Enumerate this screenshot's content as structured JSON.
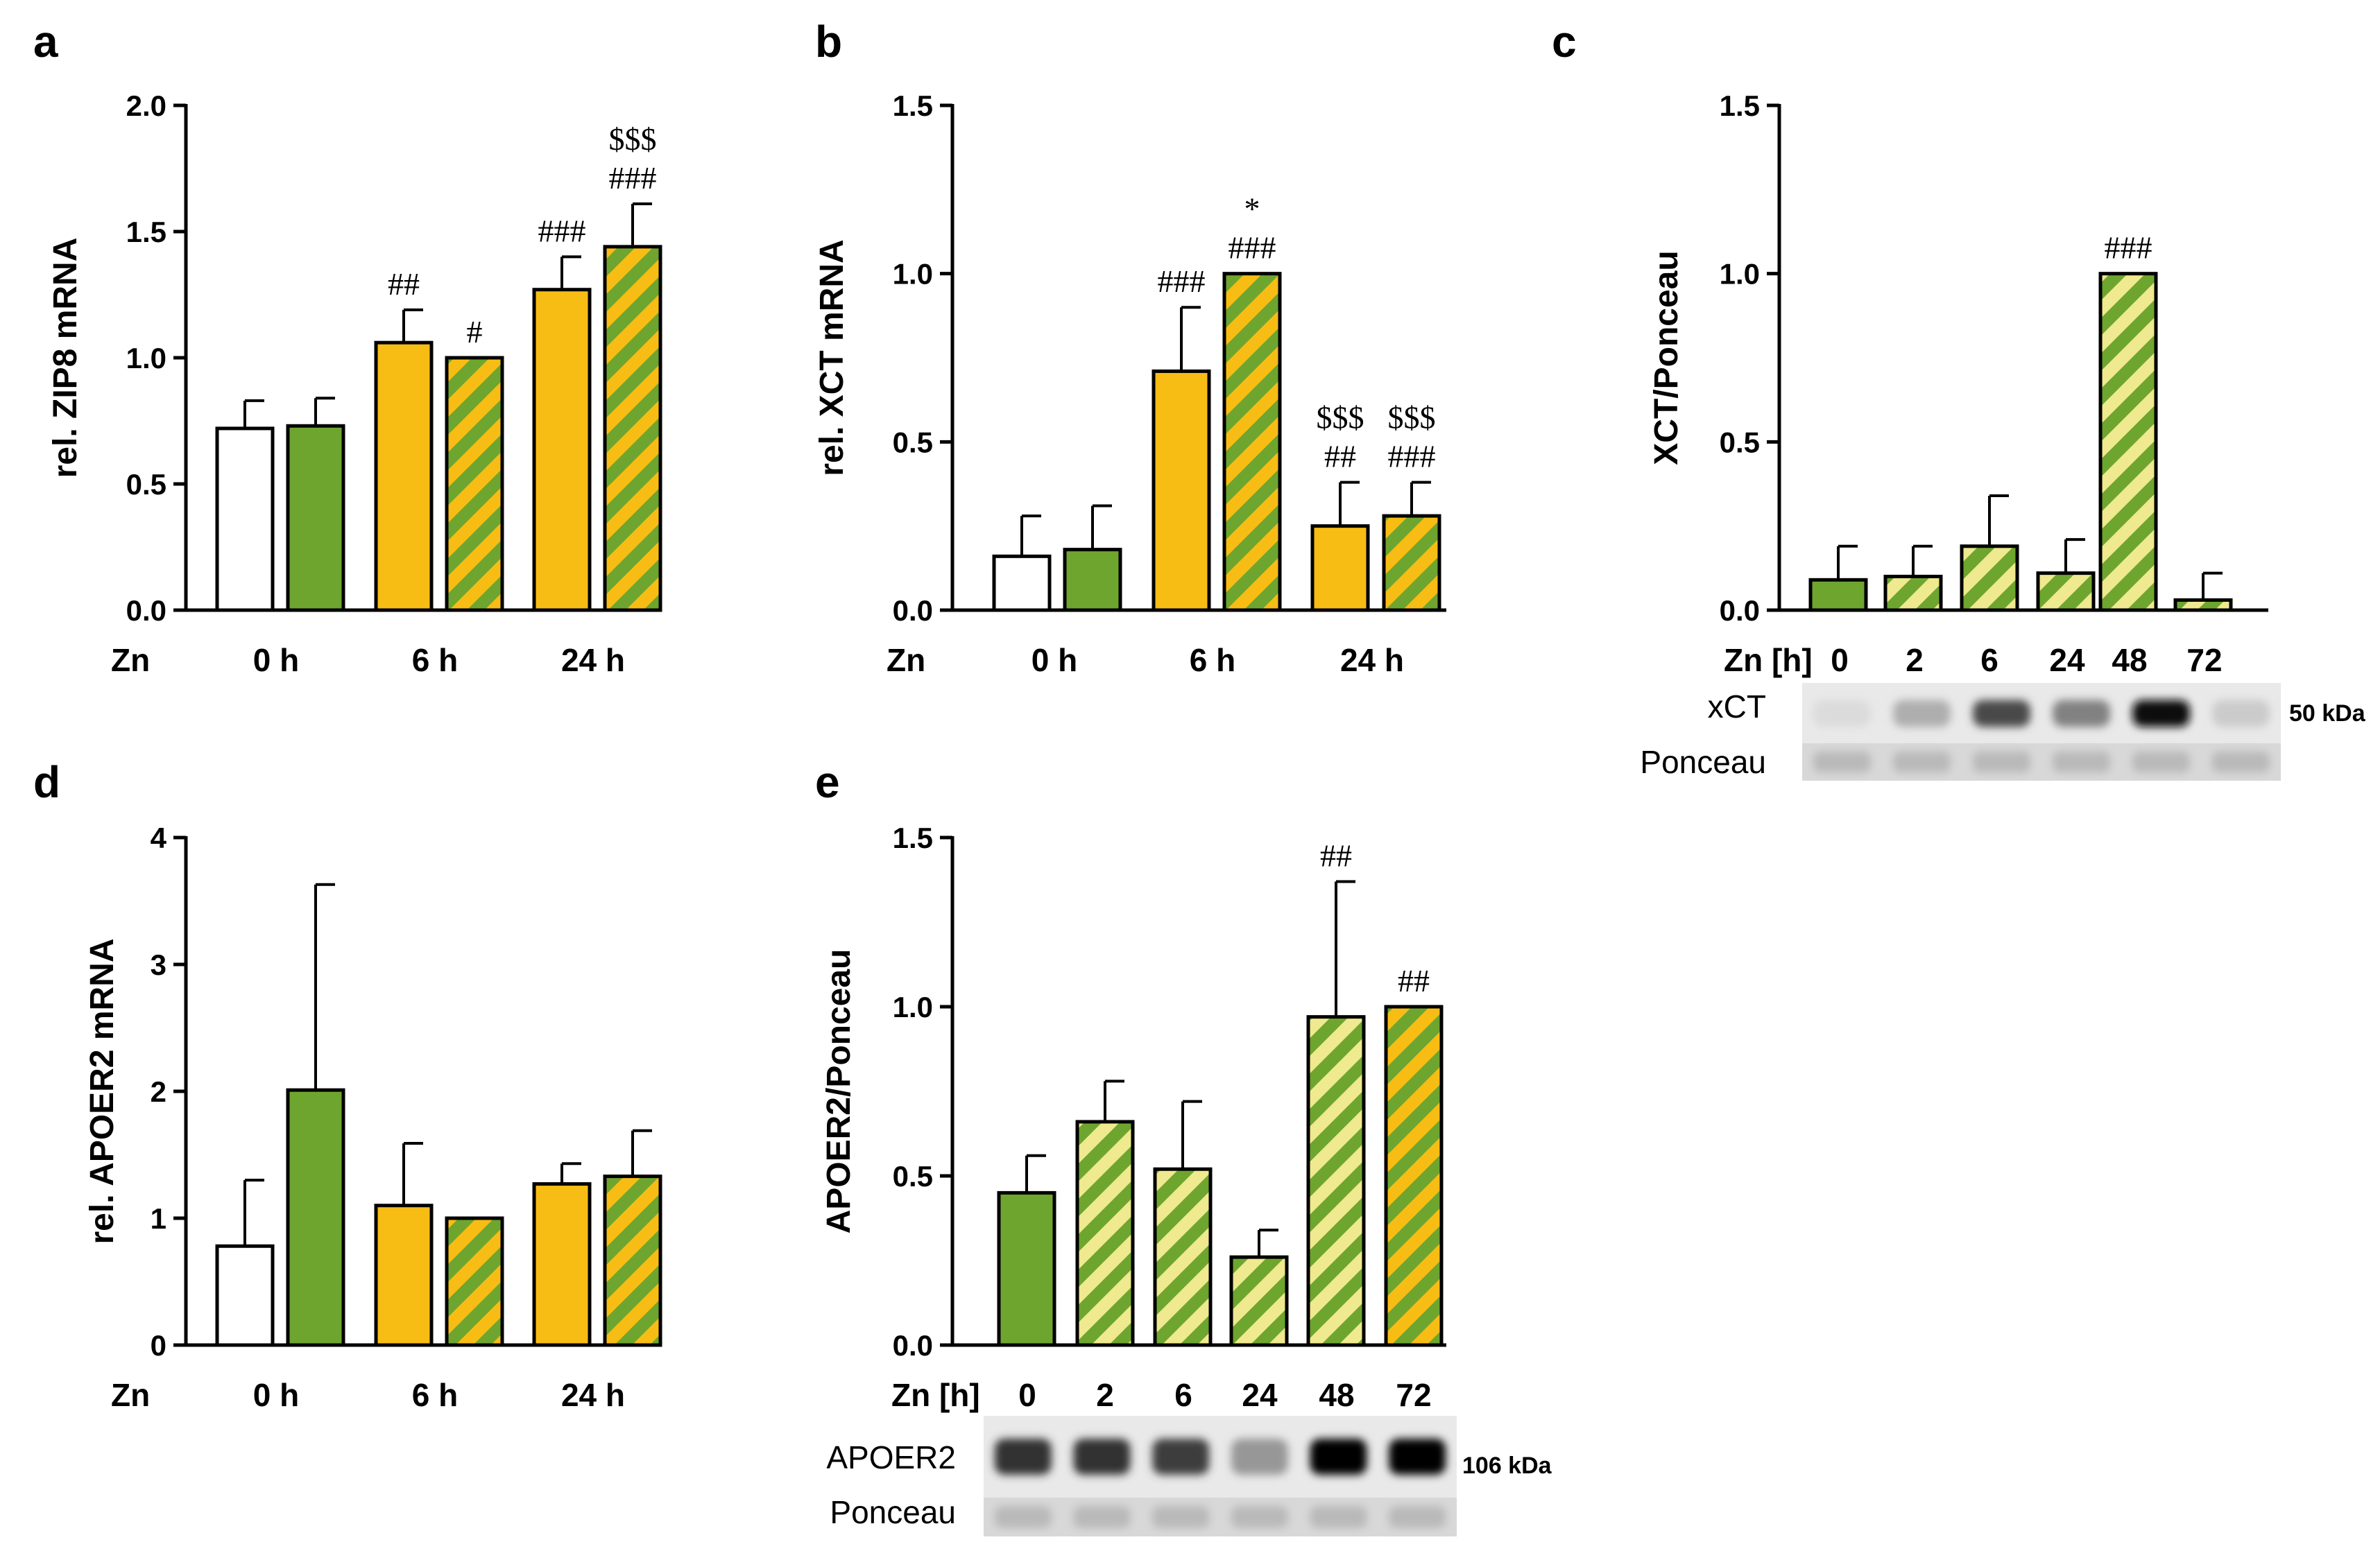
{
  "colors": {
    "white": "#ffffff",
    "green": "#6ea52f",
    "yellow": "#f8bd14",
    "stripe_light": "#efe98f",
    "axis": "#000000"
  },
  "chart_data": [
    {
      "panel": "a",
      "type": "bar",
      "ylabel": "rel. ZIP8 mRNA",
      "ylim": [
        0,
        2.0
      ],
      "yticks": [
        "0.0",
        "0.5",
        "1.0",
        "1.5",
        "2.0"
      ],
      "xlabel_prefix": "Zn",
      "groups": [
        "0 h",
        "6 h",
        "24 h"
      ],
      "bars": [
        {
          "group": 0,
          "style": "white",
          "value": 0.72,
          "err": 0.11,
          "annot": []
        },
        {
          "group": 0,
          "style": "green",
          "value": 0.73,
          "err": 0.11,
          "annot": []
        },
        {
          "group": 1,
          "style": "yellow",
          "value": 1.06,
          "err": 0.13,
          "annot": [
            "##"
          ]
        },
        {
          "group": 1,
          "style": "stripe-yellow",
          "value": 1.0,
          "err": 0,
          "annot": [
            "#"
          ]
        },
        {
          "group": 2,
          "style": "yellow",
          "value": 1.27,
          "err": 0.13,
          "annot": [
            "###"
          ]
        },
        {
          "group": 2,
          "style": "stripe-yellow",
          "value": 1.44,
          "err": 0.17,
          "annot": [
            "$$$",
            "###"
          ]
        }
      ]
    },
    {
      "panel": "b",
      "type": "bar",
      "ylabel": "rel. XCT mRNA",
      "ylim": [
        0,
        1.5
      ],
      "yticks": [
        "0.0",
        "0.5",
        "1.0",
        "1.5"
      ],
      "xlabel_prefix": "Zn",
      "groups": [
        "0 h",
        "6 h",
        "24 h"
      ],
      "bars": [
        {
          "group": 0,
          "style": "white",
          "value": 0.16,
          "err": 0.12,
          "annot": []
        },
        {
          "group": 0,
          "style": "green",
          "value": 0.18,
          "err": 0.13,
          "annot": []
        },
        {
          "group": 1,
          "style": "yellow",
          "value": 0.71,
          "err": 0.19,
          "annot": [
            "###"
          ]
        },
        {
          "group": 1,
          "style": "stripe-yellow",
          "value": 1.0,
          "err": 0,
          "annot": [
            "*",
            "###"
          ]
        },
        {
          "group": 2,
          "style": "yellow",
          "value": 0.25,
          "err": 0.13,
          "annot": [
            "$$$",
            "##"
          ]
        },
        {
          "group": 2,
          "style": "stripe-yellow",
          "value": 0.28,
          "err": 0.1,
          "annot": [
            "$$$",
            "###"
          ]
        }
      ]
    },
    {
      "panel": "c",
      "type": "bar",
      "ylabel": "XCT/Ponceau",
      "ylim": [
        0,
        1.5
      ],
      "yticks": [
        "0.0",
        "0.5",
        "1.0",
        "1.5"
      ],
      "xlabel_prefix": "Zn [h]",
      "categories": [
        "0",
        "2",
        "6",
        "24",
        "48",
        "72"
      ],
      "bars": [
        {
          "style": "green",
          "value": 0.09,
          "err": 0.1,
          "annot": []
        },
        {
          "style": "stripe-light",
          "value": 0.1,
          "err": 0.09,
          "annot": []
        },
        {
          "style": "stripe-light",
          "value": 0.19,
          "err": 0.15,
          "annot": []
        },
        {
          "style": "stripe-light",
          "value": 0.11,
          "err": 0.1,
          "annot": []
        },
        {
          "style": "stripe-light",
          "value": 1.0,
          "err": 0,
          "annot": [
            "###"
          ]
        },
        {
          "style": "stripe-light",
          "value": 0.03,
          "err": 0.08,
          "annot": []
        }
      ],
      "blot": {
        "bands": [
          "xCT",
          "Ponceau"
        ],
        "size_label": "50 kDa",
        "band_intensity": [
          0.05,
          0.25,
          0.7,
          0.45,
          0.95,
          0.12
        ]
      }
    },
    {
      "panel": "d",
      "type": "bar",
      "ylabel": "rel. APOER2 mRNA",
      "ylim": [
        0,
        4
      ],
      "yticks": [
        "0",
        "1",
        "2",
        "3",
        "4"
      ],
      "xlabel_prefix": "Zn",
      "groups": [
        "0 h",
        "6 h",
        "24 h"
      ],
      "bars": [
        {
          "group": 0,
          "style": "white",
          "value": 0.78,
          "err": 0.52,
          "annot": []
        },
        {
          "group": 0,
          "style": "green",
          "value": 2.01,
          "err": 1.62,
          "annot": []
        },
        {
          "group": 1,
          "style": "yellow",
          "value": 1.1,
          "err": 0.49,
          "annot": []
        },
        {
          "group": 1,
          "style": "stripe-yellow",
          "value": 1.0,
          "err": 0,
          "annot": []
        },
        {
          "group": 2,
          "style": "yellow",
          "value": 1.27,
          "err": 0.16,
          "annot": []
        },
        {
          "group": 2,
          "style": "stripe-yellow",
          "value": 1.33,
          "err": 0.36,
          "annot": []
        }
      ]
    },
    {
      "panel": "e",
      "type": "bar",
      "ylabel": "APOER2/Ponceau",
      "ylim": [
        0,
        1.5
      ],
      "yticks": [
        "0.0",
        "0.5",
        "1.0",
        "1.5"
      ],
      "xlabel_prefix": "Zn [h]",
      "categories": [
        "0",
        "2",
        "6",
        "24",
        "48",
        "72"
      ],
      "bars": [
        {
          "style": "green",
          "value": 0.45,
          "err": 0.11,
          "annot": []
        },
        {
          "style": "stripe-light",
          "value": 0.66,
          "err": 0.12,
          "annot": []
        },
        {
          "style": "stripe-light",
          "value": 0.52,
          "err": 0.2,
          "annot": []
        },
        {
          "style": "stripe-light",
          "value": 0.26,
          "err": 0.08,
          "annot": []
        },
        {
          "style": "stripe-light",
          "value": 0.97,
          "err": 0.4,
          "annot": [
            "##"
          ]
        },
        {
          "style": "stripe-yellow",
          "value": 1.0,
          "err": 0,
          "annot": [
            "##"
          ]
        }
      ],
      "blot": {
        "bands": [
          "APOER2",
          "Ponceau"
        ],
        "size_label": "106 kDa",
        "band_intensity": [
          0.8,
          0.8,
          0.75,
          0.35,
          1.0,
          1.0
        ]
      }
    }
  ]
}
